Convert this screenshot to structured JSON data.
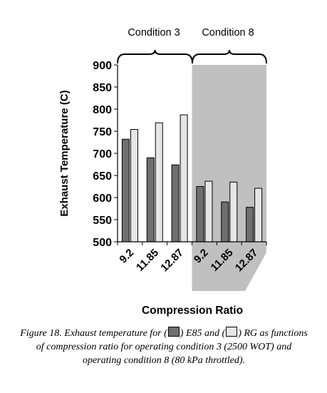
{
  "chart_data": {
    "type": "bar",
    "categories": [
      "9.2",
      "11.85",
      "12.87",
      "9.2",
      "11.85",
      "12.87"
    ],
    "groups": [
      {
        "label": "Condition 3",
        "category_indices": [
          0,
          1,
          2
        ]
      },
      {
        "label": "Condition 8",
        "category_indices": [
          3,
          4,
          5
        ],
        "shaded": true
      }
    ],
    "series": [
      {
        "name": "E85",
        "color": "#6f6f6f",
        "values": [
          732,
          690,
          674,
          625,
          590,
          578
        ]
      },
      {
        "name": "RG",
        "color": "#e6e6e6",
        "values": [
          754,
          769,
          787,
          637,
          635,
          621
        ]
      }
    ],
    "xlabel": "Compression Ratio",
    "ylabel": "Exhaust Temperature  (C)",
    "ylim": [
      500,
      900
    ],
    "yticks": [
      "500",
      "550",
      "600",
      "650",
      "700",
      "750",
      "800",
      "850",
      "900"
    ],
    "grid": false,
    "shade_color": "#c0c0c0"
  },
  "caption": {
    "part1": "Figure 18. Exhaust temperature for (",
    "part2": ") E85 and (",
    "part3": ") RG as functions of compression ratio for operating condition  3 (2500 WOT) and operating condition  8 (80 kPa throttled)."
  }
}
